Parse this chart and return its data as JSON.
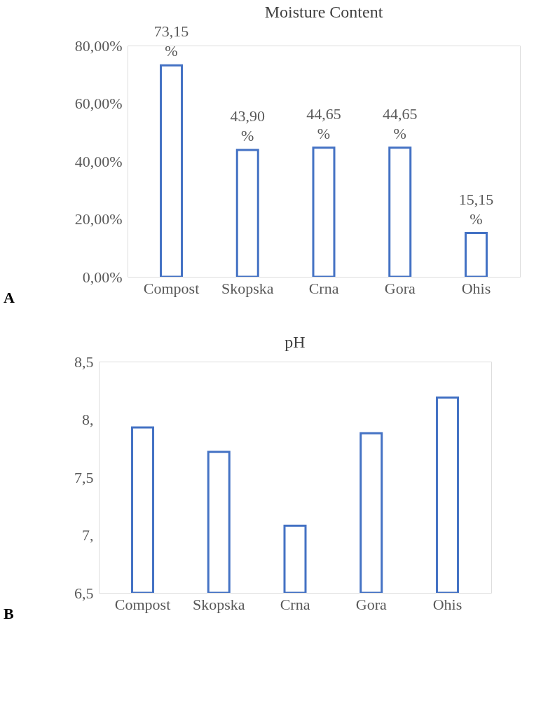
{
  "chart_data": [
    {
      "type": "bar",
      "title": "Moisture Content",
      "categories": [
        "Compost",
        "Skopska",
        "Crna",
        "Gora",
        "Ohis"
      ],
      "values": [
        73.15,
        43.9,
        44.65,
        44.65,
        15.15
      ],
      "value_labels": [
        "73,15 %",
        "43,90 %",
        "44,65 %",
        "44,65 %",
        "15,15 %"
      ],
      "color": "#4472c4",
      "ylim": [
        0,
        80
      ],
      "yticks": [
        {
          "value": 0,
          "label": "0,00%"
        },
        {
          "value": 20,
          "label": "20,00%"
        },
        {
          "value": 40,
          "label": "40,00%"
        },
        {
          "value": 60,
          "label": "60,00%"
        },
        {
          "value": 80,
          "label": "80,00%"
        }
      ],
      "grid": false,
      "annotations": [
        "A"
      ]
    },
    {
      "type": "bar",
      "title": "pH",
      "categories": [
        "Compost",
        "Skopska",
        "Crna",
        "Gora",
        "Ohis"
      ],
      "values": [
        7.93,
        7.72,
        7.08,
        7.88,
        8.19
      ],
      "color": "#4472c4",
      "ylim": [
        6.5,
        8.5
      ],
      "yticks": [
        {
          "value": 6.5,
          "label": "6,5"
        },
        {
          "value": 7,
          "label": "7,"
        },
        {
          "value": 7.5,
          "label": "7,5"
        },
        {
          "value": 8,
          "label": "8,"
        },
        {
          "value": 8.5,
          "label": "8,5"
        }
      ],
      "grid": false,
      "annotations": [
        "B"
      ]
    }
  ]
}
